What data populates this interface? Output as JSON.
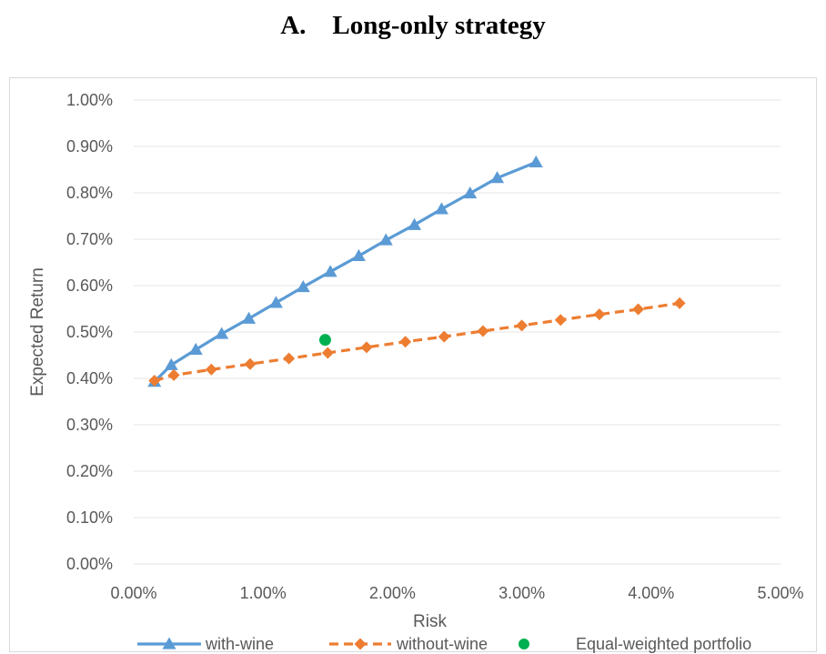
{
  "page": {
    "title": "A. Long-only strategy"
  },
  "colors": {
    "with_wine": "#5b9bd5",
    "without_wine": "#ed7d31",
    "equal_weighted": "#00b050",
    "grid": "#e6e6e6",
    "text": "#595959"
  },
  "chart_data": {
    "type": "line",
    "title": "A. Long-only strategy",
    "xlabel": "Risk",
    "ylabel": "Expected Return",
    "xlim": [
      0,
      5
    ],
    "ylim": [
      0,
      1
    ],
    "x_unit": "%",
    "y_unit": "%",
    "x_ticks": [
      "0.00%",
      "1.00%",
      "2.00%",
      "3.00%",
      "4.00%",
      "5.00%"
    ],
    "y_ticks": [
      "0.00%",
      "0.10%",
      "0.20%",
      "0.30%",
      "0.40%",
      "0.50%",
      "0.60%",
      "0.70%",
      "0.80%",
      "0.90%",
      "1.00%"
    ],
    "grid": true,
    "legend_position": "bottom",
    "series": [
      {
        "name": "with-wine",
        "marker": "triangle",
        "line_style": "solid",
        "color": "#5b9bd5",
        "points": [
          [
            0.16,
            0.393
          ],
          [
            0.29,
            0.429
          ],
          [
            0.48,
            0.462
          ],
          [
            0.68,
            0.496
          ],
          [
            0.89,
            0.529
          ],
          [
            1.1,
            0.563
          ],
          [
            1.31,
            0.597
          ],
          [
            1.52,
            0.63
          ],
          [
            1.74,
            0.664
          ],
          [
            1.95,
            0.698
          ],
          [
            2.17,
            0.731
          ],
          [
            2.38,
            0.765
          ],
          [
            2.6,
            0.799
          ],
          [
            2.81,
            0.832
          ],
          [
            3.11,
            0.866
          ]
        ]
      },
      {
        "name": "without-wine",
        "marker": "diamond",
        "line_style": "dashed",
        "color": "#ed7d31",
        "points": [
          [
            0.16,
            0.395
          ],
          [
            0.31,
            0.407
          ],
          [
            0.6,
            0.419
          ],
          [
            0.9,
            0.431
          ],
          [
            1.2,
            0.443
          ],
          [
            1.5,
            0.455
          ],
          [
            1.8,
            0.467
          ],
          [
            2.1,
            0.479
          ],
          [
            2.4,
            0.49
          ],
          [
            2.7,
            0.502
          ],
          [
            3.0,
            0.514
          ],
          [
            3.3,
            0.526
          ],
          [
            3.6,
            0.538
          ],
          [
            3.9,
            0.549
          ],
          [
            4.22,
            0.562
          ]
        ]
      },
      {
        "name": "Equal-weighted portfolio",
        "marker": "circle",
        "line_style": "none",
        "color": "#00b050",
        "points": [
          [
            1.48,
            0.483
          ]
        ]
      }
    ]
  }
}
